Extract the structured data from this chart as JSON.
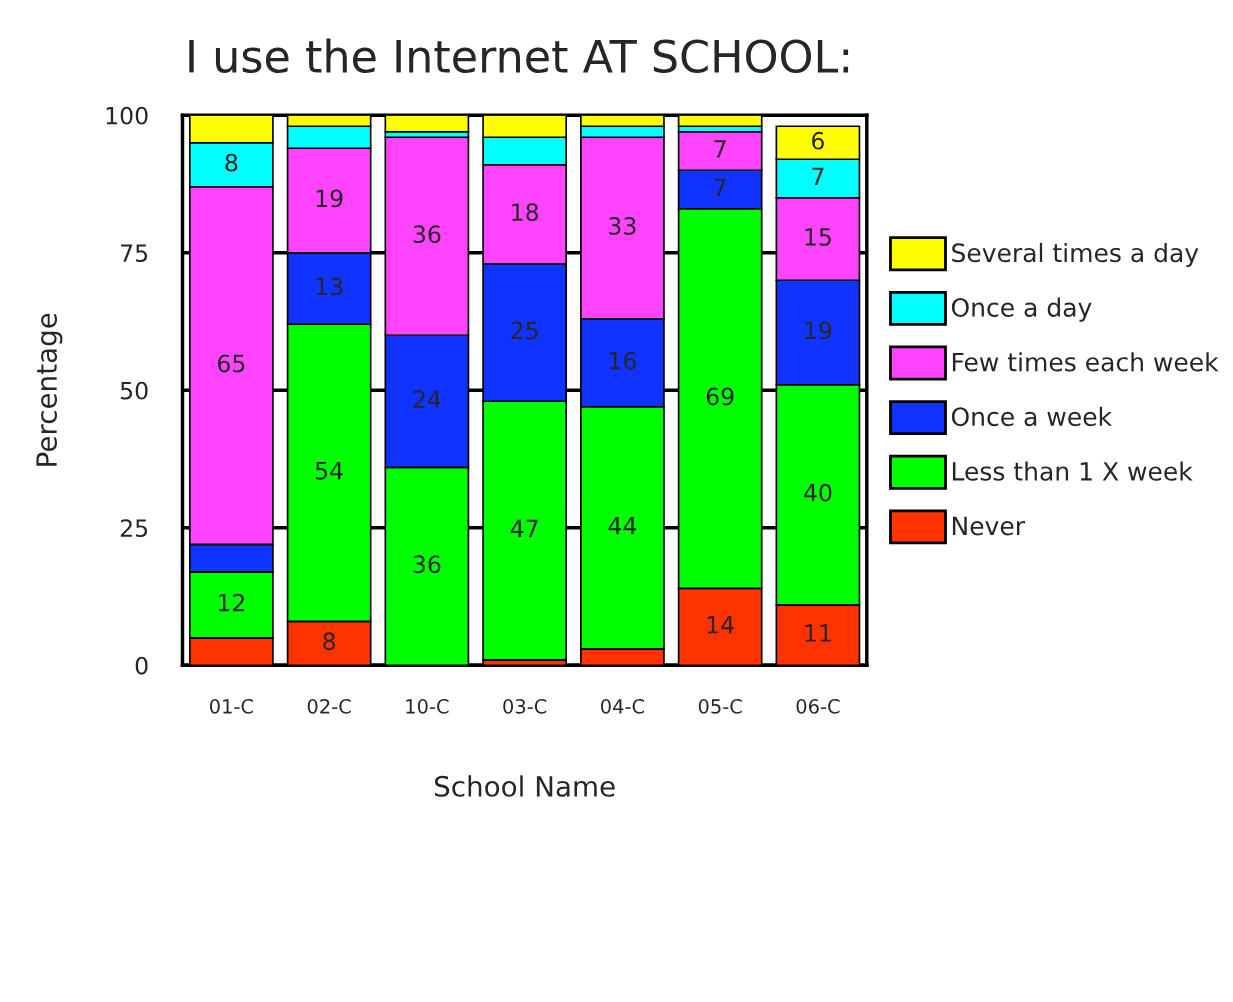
{
  "chart_data": {
    "type": "bar",
    "title": "I use the Internet AT SCHOOL:",
    "xlabel": "School Name",
    "ylabel": "Percentage",
    "categories": [
      "01-C",
      "02-C",
      "10-C",
      "03-C",
      "04-C",
      "05-C",
      "06-C"
    ],
    "stacked": true,
    "ylim": [
      0,
      100
    ],
    "yticks": [
      0,
      25,
      50,
      75,
      100
    ],
    "grid": "y",
    "legend": "right",
    "series": [
      {
        "name": "Never",
        "color": "#ff3300",
        "values": [
          5,
          8,
          0,
          1,
          3,
          14,
          11
        ],
        "value_labels": [
          null,
          "8",
          null,
          null,
          null,
          "14",
          "11"
        ]
      },
      {
        "name": "Less than 1 X week",
        "color": "#00ff00",
        "values": [
          12,
          54,
          36,
          47,
          44,
          69,
          40
        ],
        "value_labels": [
          "12",
          "54",
          "36",
          "47",
          "44",
          "69",
          "40"
        ]
      },
      {
        "name": "Once a week",
        "color": "#1133ff",
        "values": [
          5,
          13,
          24,
          25,
          16,
          7,
          19
        ],
        "value_labels": [
          null,
          "13",
          "24",
          "25",
          "16",
          "7",
          "19"
        ]
      },
      {
        "name": "Few times each week",
        "color": "#ff44ff",
        "values": [
          65,
          19,
          36,
          18,
          33,
          7,
          15
        ],
        "value_labels": [
          "65",
          "19",
          "36",
          "18",
          "33",
          "7",
          "15"
        ]
      },
      {
        "name": "Once a day",
        "color": "#00ffff",
        "values": [
          8,
          4,
          1,
          5,
          2,
          1,
          7
        ],
        "value_labels": [
          "8",
          null,
          null,
          null,
          null,
          null,
          "7"
        ]
      },
      {
        "name": "Several times a day",
        "color": "#ffff00",
        "values": [
          5,
          2,
          3,
          4,
          2,
          2,
          6
        ],
        "value_labels": [
          null,
          null,
          null,
          null,
          null,
          null,
          "6"
        ]
      }
    ]
  }
}
